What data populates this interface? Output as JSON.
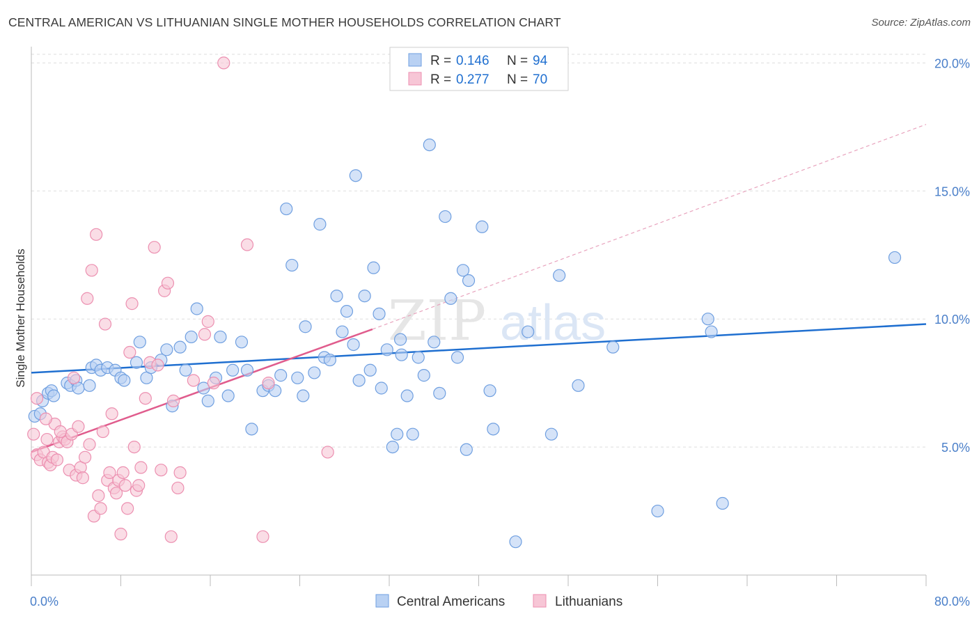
{
  "title": "CENTRAL AMERICAN VS LITHUANIAN SINGLE MOTHER HOUSEHOLDS CORRELATION CHART",
  "source": "Source: ZipAtlas.com",
  "watermark": {
    "zip": "ZIP",
    "atlas": "atlas"
  },
  "colors": {
    "blue": "#1f6fd0",
    "blue_fill": "#b9d1f3",
    "blue_stroke": "#6f9fe0",
    "pink": "#e05c8d",
    "pink_fill": "#f7c6d6",
    "pink_stroke": "#ec8fb0",
    "axis_text": "#4a7fc9",
    "grid": "#dddddd"
  },
  "legend": {
    "rows": [
      {
        "series": "Central Americans",
        "r_label": "R =",
        "r_value": "0.146",
        "n_label": "N =",
        "n_value": "94"
      },
      {
        "series": "Lithuanians",
        "r_label": "R =",
        "r_value": "0.277",
        "n_label": "N =",
        "n_value": "70"
      }
    ]
  },
  "chart_data": {
    "type": "scatter",
    "title": "CENTRAL AMERICAN VS LITHUANIAN SINGLE MOTHER HOUSEHOLDS CORRELATION CHART",
    "xlabel": "",
    "ylabel": "Single Mother Households",
    "xlim": [
      0,
      80
    ],
    "ylim": [
      0,
      20.5
    ],
    "x_tick_labels": [
      "0.0%",
      "80.0%"
    ],
    "y_ticks": [
      5,
      10,
      15,
      20
    ],
    "y_tick_labels": [
      "5.0%",
      "10.0%",
      "15.0%",
      "20.0%"
    ],
    "grid": true,
    "legend_position": "bottom-center",
    "series": [
      {
        "name": "Central Americans",
        "color": "#1f6fd0",
        "trend": {
          "x": [
            0,
            80
          ],
          "y": [
            7.9,
            9.8
          ],
          "dashed_extension": false
        },
        "points": [
          [
            0.3,
            6.2
          ],
          [
            0.8,
            6.3
          ],
          [
            1.0,
            6.8
          ],
          [
            1.5,
            7.1
          ],
          [
            1.8,
            7.2
          ],
          [
            2.0,
            7.0
          ],
          [
            3.2,
            7.5
          ],
          [
            3.5,
            7.4
          ],
          [
            4.0,
            7.6
          ],
          [
            4.2,
            7.3
          ],
          [
            5.2,
            7.4
          ],
          [
            5.4,
            8.1
          ],
          [
            5.8,
            8.2
          ],
          [
            6.2,
            8.0
          ],
          [
            6.8,
            8.1
          ],
          [
            7.5,
            8.0
          ],
          [
            8.0,
            7.7
          ],
          [
            8.3,
            7.6
          ],
          [
            9.4,
            8.3
          ],
          [
            9.7,
            9.1
          ],
          [
            10.3,
            7.7
          ],
          [
            10.7,
            8.1
          ],
          [
            11.6,
            8.4
          ],
          [
            12.1,
            8.8
          ],
          [
            12.6,
            6.6
          ],
          [
            13.3,
            8.9
          ],
          [
            13.8,
            8.0
          ],
          [
            14.3,
            9.3
          ],
          [
            14.8,
            10.4
          ],
          [
            15.4,
            7.3
          ],
          [
            15.8,
            6.8
          ],
          [
            16.5,
            7.7
          ],
          [
            16.9,
            9.3
          ],
          [
            17.6,
            7.0
          ],
          [
            18.0,
            8.0
          ],
          [
            18.8,
            9.1
          ],
          [
            19.3,
            8.0
          ],
          [
            19.7,
            5.7
          ],
          [
            20.7,
            7.2
          ],
          [
            21.2,
            7.4
          ],
          [
            21.8,
            7.2
          ],
          [
            22.3,
            7.8
          ],
          [
            22.8,
            14.3
          ],
          [
            23.3,
            12.1
          ],
          [
            23.8,
            7.7
          ],
          [
            24.3,
            7.0
          ],
          [
            24.5,
            9.7
          ],
          [
            25.3,
            7.9
          ],
          [
            25.8,
            13.7
          ],
          [
            26.2,
            8.5
          ],
          [
            26.7,
            8.4
          ],
          [
            27.3,
            10.9
          ],
          [
            27.8,
            9.5
          ],
          [
            28.2,
            10.3
          ],
          [
            28.8,
            9.0
          ],
          [
            29.3,
            7.6
          ],
          [
            29.8,
            10.9
          ],
          [
            30.3,
            8.0
          ],
          [
            30.6,
            12.0
          ],
          [
            31.1,
            10.2
          ],
          [
            31.3,
            7.3
          ],
          [
            31.8,
            8.8
          ],
          [
            32.3,
            5.0
          ],
          [
            32.7,
            5.5
          ],
          [
            33.1,
            8.6
          ],
          [
            33.6,
            7.0
          ],
          [
            34.1,
            5.5
          ],
          [
            34.6,
            8.5
          ],
          [
            35.1,
            7.8
          ],
          [
            35.6,
            16.8
          ],
          [
            36.0,
            9.1
          ],
          [
            36.5,
            7.1
          ],
          [
            37.0,
            14.0
          ],
          [
            37.5,
            10.8
          ],
          [
            38.1,
            8.5
          ],
          [
            38.6,
            11.9
          ],
          [
            38.9,
            4.9
          ],
          [
            39.1,
            11.5
          ],
          [
            40.3,
            13.6
          ],
          [
            41.0,
            7.2
          ],
          [
            41.3,
            5.7
          ],
          [
            43.3,
            1.3
          ],
          [
            44.4,
            9.5
          ],
          [
            46.5,
            5.5
          ],
          [
            47.2,
            11.7
          ],
          [
            48.9,
            7.4
          ],
          [
            52.0,
            8.9
          ],
          [
            56.0,
            2.5
          ],
          [
            60.5,
            10.0
          ],
          [
            60.8,
            9.5
          ],
          [
            61.8,
            2.8
          ],
          [
            77.2,
            12.4
          ],
          [
            29.0,
            15.6
          ],
          [
            33.0,
            9.2
          ]
        ]
      },
      {
        "name": "Lithuanians",
        "color": "#e05c8d",
        "trend": {
          "x": [
            0,
            30.5
          ],
          "y": [
            4.8,
            9.6
          ],
          "dashed_extension": true,
          "extension_x": [
            30.5,
            80
          ],
          "extension_y": [
            9.6,
            17.6
          ]
        },
        "points": [
          [
            0.2,
            5.5
          ],
          [
            0.5,
            4.7
          ],
          [
            0.8,
            4.5
          ],
          [
            1.1,
            4.8
          ],
          [
            1.4,
            5.3
          ],
          [
            1.5,
            4.4
          ],
          [
            1.7,
            4.3
          ],
          [
            1.9,
            4.6
          ],
          [
            2.1,
            5.9
          ],
          [
            2.3,
            4.5
          ],
          [
            2.5,
            5.2
          ],
          [
            2.8,
            5.4
          ],
          [
            3.0,
            5.3
          ],
          [
            3.2,
            5.2
          ],
          [
            3.4,
            4.1
          ],
          [
            3.6,
            5.5
          ],
          [
            3.8,
            7.7
          ],
          [
            4.0,
            3.9
          ],
          [
            4.2,
            5.8
          ],
          [
            4.4,
            4.2
          ],
          [
            4.6,
            3.8
          ],
          [
            4.8,
            4.6
          ],
          [
            5.0,
            10.8
          ],
          [
            5.2,
            5.1
          ],
          [
            5.4,
            11.9
          ],
          [
            5.6,
            2.3
          ],
          [
            5.8,
            13.3
          ],
          [
            6.0,
            3.1
          ],
          [
            6.2,
            2.6
          ],
          [
            6.4,
            5.6
          ],
          [
            6.6,
            9.8
          ],
          [
            6.8,
            3.7
          ],
          [
            7.0,
            4.0
          ],
          [
            7.2,
            6.3
          ],
          [
            7.4,
            3.4
          ],
          [
            7.6,
            3.2
          ],
          [
            7.8,
            3.7
          ],
          [
            8.0,
            1.6
          ],
          [
            8.2,
            4.0
          ],
          [
            8.4,
            3.5
          ],
          [
            8.6,
            2.6
          ],
          [
            8.8,
            8.7
          ],
          [
            9.0,
            10.6
          ],
          [
            9.2,
            5.0
          ],
          [
            9.4,
            3.3
          ],
          [
            9.6,
            3.5
          ],
          [
            9.8,
            4.2
          ],
          [
            10.2,
            6.9
          ],
          [
            10.6,
            8.3
          ],
          [
            11.0,
            12.8
          ],
          [
            11.3,
            8.2
          ],
          [
            11.6,
            4.1
          ],
          [
            11.9,
            11.1
          ],
          [
            12.2,
            11.4
          ],
          [
            12.5,
            1.5
          ],
          [
            12.7,
            6.8
          ],
          [
            13.1,
            3.4
          ],
          [
            13.3,
            4.0
          ],
          [
            14.5,
            7.6
          ],
          [
            15.5,
            9.4
          ],
          [
            15.8,
            9.9
          ],
          [
            16.3,
            7.5
          ],
          [
            17.2,
            20.0
          ],
          [
            19.3,
            12.9
          ],
          [
            20.7,
            1.5
          ],
          [
            21.2,
            7.5
          ],
          [
            26.5,
            4.8
          ],
          [
            2.6,
            5.6
          ],
          [
            0.5,
            6.9
          ],
          [
            1.3,
            6.1
          ]
        ]
      }
    ]
  }
}
